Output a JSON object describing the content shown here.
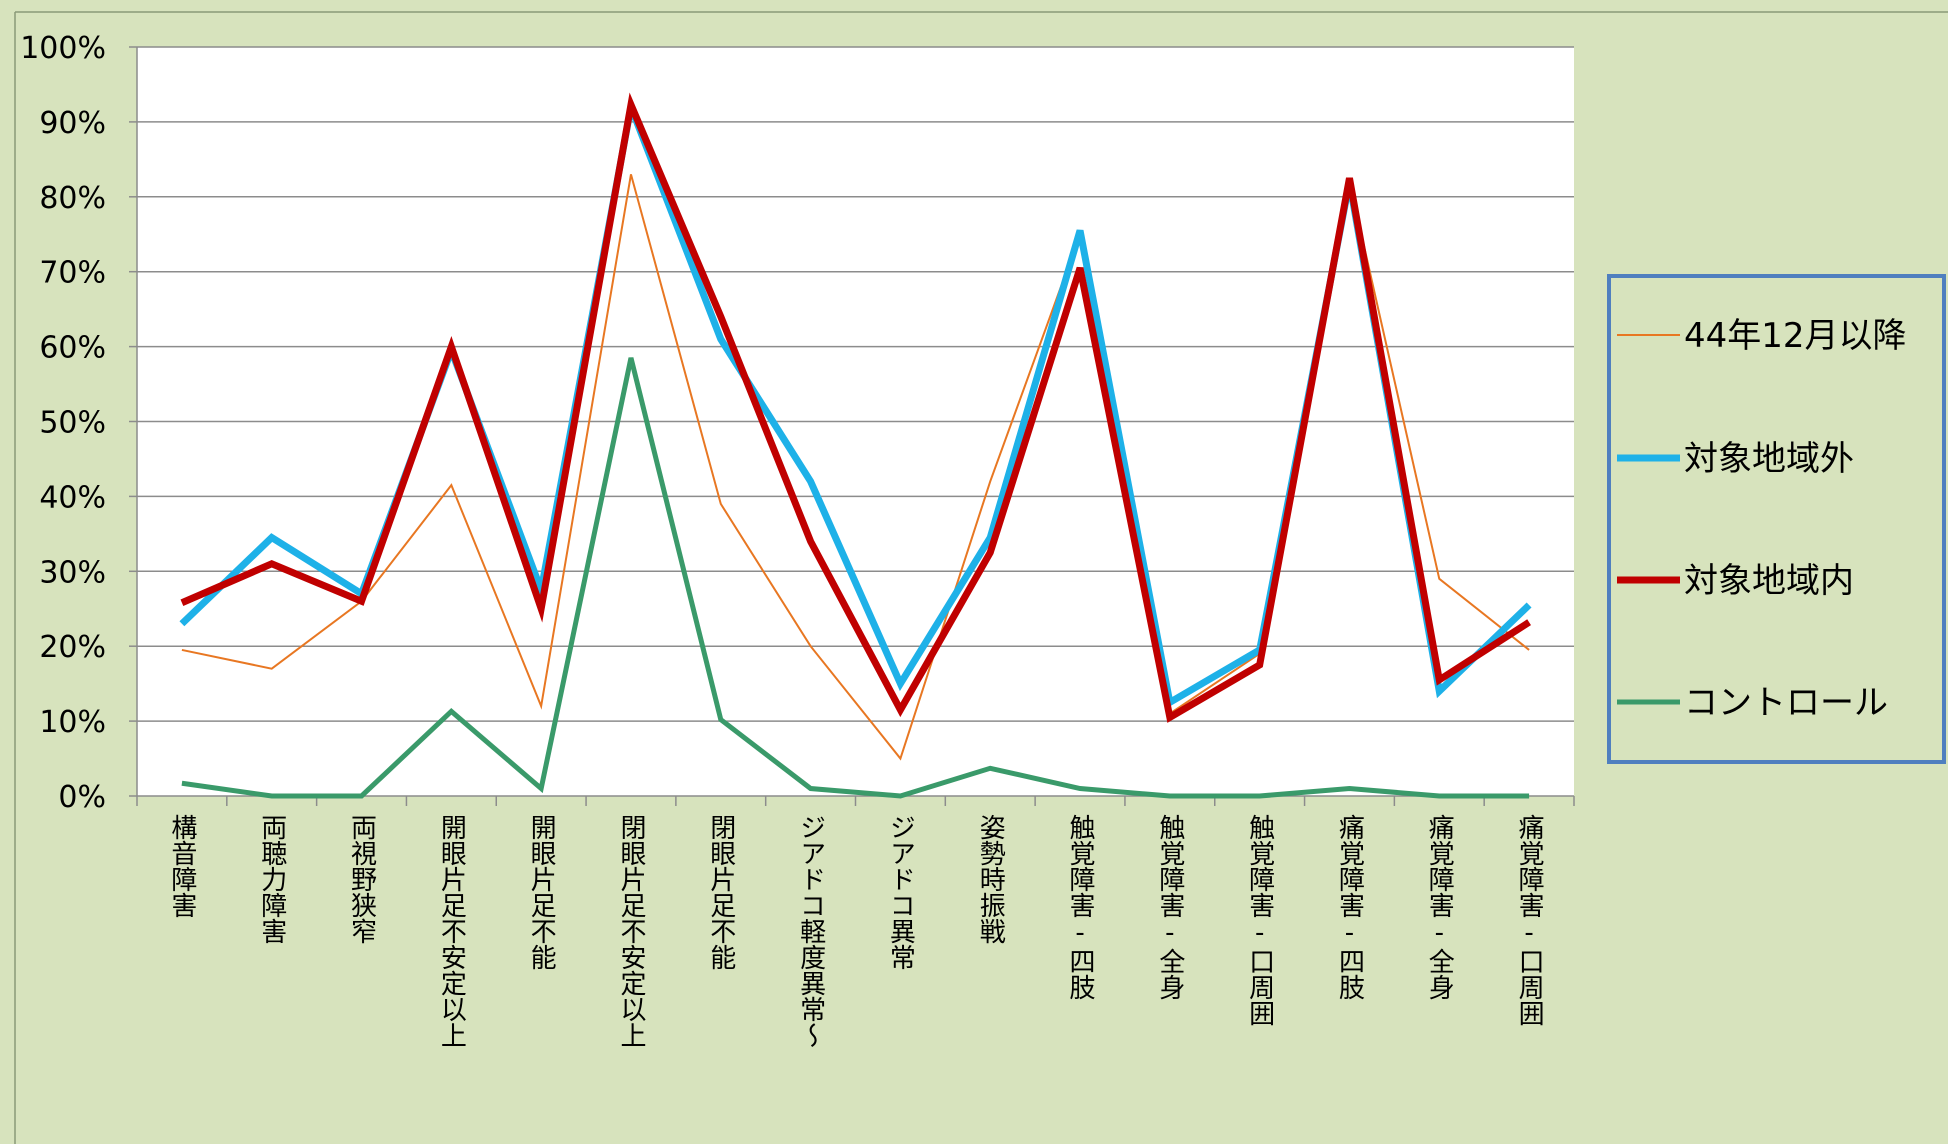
{
  "chart_data": {
    "type": "line",
    "categories": [
      "構音障害",
      "両聴力障害",
      "両視野狭窄",
      "開眼片足不安定以上",
      "開眼片足不能",
      "閉眼片足不安定以上",
      "閉眼片足不能",
      "ジアドコ軽度異常～",
      "ジアドコ異常",
      "姿勢時振戦",
      "触覚障害-四肢",
      "触覚障害-全身",
      "触覚障害-口周囲",
      "痛覚障害-四肢",
      "痛覚障害-全身",
      "痛覚障害-口周囲"
    ],
    "series": [
      {
        "name": "44年12月以降",
        "color": "#e87722",
        "width": 2,
        "values": [
          19.5,
          17,
          26,
          41.5,
          12,
          83,
          39,
          20,
          5,
          42,
          75,
          11,
          19,
          82,
          29,
          19.5
        ]
      },
      {
        "name": "対象地域外",
        "color": "#1eb1e8",
        "width": 7,
        "values": [
          23,
          34.5,
          27,
          59.5,
          27.5,
          92,
          61,
          42,
          15,
          34.5,
          75.5,
          12.5,
          19.5,
          82,
          14,
          25.5
        ]
      },
      {
        "name": "対象地域内",
        "color": "#c00000",
        "width": 7,
        "values": [
          25.8,
          31,
          26,
          60,
          25,
          92.3,
          64,
          34,
          11.5,
          32.5,
          70.5,
          10.5,
          17.5,
          82.5,
          15.5,
          23.2
        ]
      },
      {
        "name": "コントロール",
        "color": "#3a9a6a",
        "width": 5,
        "values": [
          1.7,
          0,
          0,
          11.3,
          1,
          58.5,
          10.2,
          1,
          0,
          3.7,
          1,
          0,
          0,
          1,
          0,
          0
        ]
      }
    ],
    "ylim": [
      0,
      100
    ],
    "yticks": [
      {
        "value": 0,
        "label": "0%"
      },
      {
        "value": 10,
        "label": "10%"
      },
      {
        "value": 20,
        "label": "20%"
      },
      {
        "value": 30,
        "label": "30%"
      },
      {
        "value": 40,
        "label": "40%"
      },
      {
        "value": 50,
        "label": "50%"
      },
      {
        "value": 60,
        "label": "60%"
      },
      {
        "value": 70,
        "label": "70%"
      },
      {
        "value": 80,
        "label": "80%"
      },
      {
        "value": 90,
        "label": "90%"
      },
      {
        "value": 100,
        "label": "100%"
      }
    ],
    "grid": true,
    "legend": "right"
  }
}
